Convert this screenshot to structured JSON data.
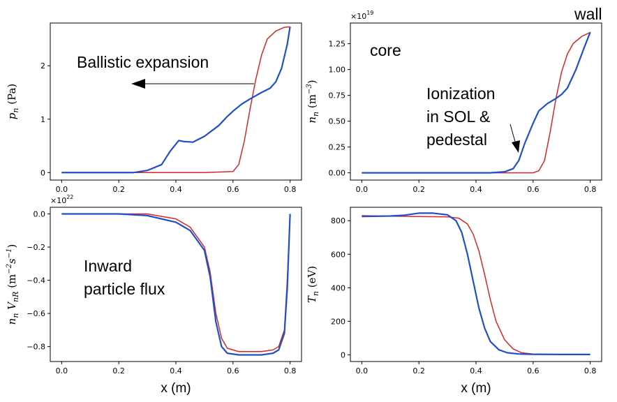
{
  "chart_data": [
    {
      "type": "line",
      "panel": "top-left",
      "ylabel": "p_n (Pa)",
      "xlabel": "",
      "xlim": [
        -0.04,
        0.84
      ],
      "ylim": [
        -0.14,
        2.8
      ],
      "xticks": [
        0.0,
        0.2,
        0.4,
        0.6,
        0.8
      ],
      "xtick_labels": [
        "0.0",
        "0.2",
        "0.4",
        "0.6",
        "0.8"
      ],
      "yticks": [
        0,
        1,
        2
      ],
      "ytick_labels": [
        "0",
        "1",
        "2"
      ],
      "offset_text": "",
      "series": [
        {
          "color": "#d62728",
          "x": [
            0,
            0.5,
            0.6,
            0.62,
            0.64,
            0.66,
            0.68,
            0.7,
            0.72,
            0.75,
            0.78,
            0.8
          ],
          "y": [
            0,
            0,
            0.02,
            0.15,
            0.6,
            1.2,
            1.75,
            2.2,
            2.5,
            2.65,
            2.72,
            2.73
          ]
        },
        {
          "color": "#1f4fc9",
          "x": [
            0,
            0.25,
            0.3,
            0.35,
            0.38,
            0.41,
            0.43,
            0.46,
            0.5,
            0.55,
            0.58,
            0.6,
            0.63,
            0.66,
            0.7,
            0.73,
            0.75,
            0.77,
            0.79,
            0.8
          ],
          "y": [
            0,
            0,
            0.04,
            0.15,
            0.4,
            0.6,
            0.58,
            0.57,
            0.68,
            0.88,
            1.05,
            1.15,
            1.28,
            1.38,
            1.5,
            1.58,
            1.7,
            1.95,
            2.4,
            2.73
          ]
        }
      ]
    },
    {
      "type": "line",
      "panel": "top-right",
      "ylabel": "n_n (m^-3)",
      "xlabel": "",
      "xlim": [
        -0.04,
        0.84
      ],
      "ylim": [
        -0.07,
        1.45
      ],
      "xticks": [
        0.0,
        0.2,
        0.4,
        0.6,
        0.8
      ],
      "xtick_labels": [
        "0.0",
        "0.2",
        "0.4",
        "0.6",
        "0.8"
      ],
      "yticks": [
        0.0,
        0.25,
        0.5,
        0.75,
        1.0,
        1.25
      ],
      "ytick_labels": [
        "0.00",
        "0.25",
        "0.50",
        "0.75",
        "1.00",
        "1.25"
      ],
      "offset_text": "×10^19",
      "series": [
        {
          "color": "#d62728",
          "x": [
            0,
            0.6,
            0.62,
            0.64,
            0.66,
            0.68,
            0.7,
            0.72,
            0.74,
            0.77,
            0.8
          ],
          "y": [
            0,
            0,
            0.02,
            0.12,
            0.4,
            0.72,
            0.98,
            1.15,
            1.25,
            1.32,
            1.36
          ]
        },
        {
          "color": "#1f4fc9",
          "x": [
            0,
            0.45,
            0.5,
            0.53,
            0.55,
            0.57,
            0.6,
            0.62,
            0.65,
            0.68,
            0.7,
            0.72,
            0.75,
            0.78,
            0.8
          ],
          "y": [
            0,
            0,
            0.01,
            0.04,
            0.12,
            0.28,
            0.48,
            0.6,
            0.67,
            0.72,
            0.76,
            0.82,
            1.0,
            1.22,
            1.36
          ]
        }
      ]
    },
    {
      "type": "line",
      "panel": "bottom-left",
      "ylabel": "n_n V_nR (m^-2 s^-1)",
      "xlabel": "x (m)",
      "xlim": [
        -0.04,
        0.84
      ],
      "ylim": [
        -0.89,
        0.04
      ],
      "xticks": [
        0.0,
        0.2,
        0.4,
        0.6,
        0.8
      ],
      "xtick_labels": [
        "0.0",
        "0.2",
        "0.4",
        "0.6",
        "0.8"
      ],
      "yticks": [
        0.0,
        -0.2,
        -0.4,
        -0.6,
        -0.8
      ],
      "ytick_labels": [
        "0.0",
        "−0.2",
        "−0.4",
        "−0.6",
        "−0.8"
      ],
      "offset_text": "×10^22",
      "series": [
        {
          "color": "#d62728",
          "x": [
            0,
            0.3,
            0.4,
            0.45,
            0.5,
            0.52,
            0.54,
            0.56,
            0.58,
            0.62,
            0.66,
            0.7,
            0.74,
            0.76,
            0.78,
            0.79,
            0.8
          ],
          "y": [
            0,
            0,
            -0.03,
            -0.08,
            -0.2,
            -0.35,
            -0.6,
            -0.75,
            -0.81,
            -0.83,
            -0.83,
            -0.83,
            -0.82,
            -0.8,
            -0.7,
            -0.4,
            0
          ]
        },
        {
          "color": "#1f4fc9",
          "x": [
            0,
            0.2,
            0.3,
            0.4,
            0.45,
            0.5,
            0.52,
            0.54,
            0.56,
            0.58,
            0.62,
            0.66,
            0.7,
            0.74,
            0.76,
            0.78,
            0.79,
            0.8
          ],
          "y": [
            0,
            0,
            -0.01,
            -0.05,
            -0.1,
            -0.22,
            -0.38,
            -0.65,
            -0.8,
            -0.84,
            -0.85,
            -0.85,
            -0.85,
            -0.84,
            -0.82,
            -0.72,
            -0.45,
            0
          ]
        }
      ]
    },
    {
      "type": "line",
      "panel": "bottom-right",
      "ylabel": "T_n (eV)",
      "xlabel": "x (m)",
      "xlim": [
        -0.04,
        0.84
      ],
      "ylim": [
        -40,
        880
      ],
      "xticks": [
        0.0,
        0.2,
        0.4,
        0.6,
        0.8
      ],
      "xtick_labels": [
        "0.0",
        "0.2",
        "0.4",
        "0.6",
        "0.8"
      ],
      "yticks": [
        0,
        200,
        400,
        600,
        800
      ],
      "ytick_labels": [
        "0",
        "200",
        "400",
        "600",
        "800"
      ],
      "offset_text": "",
      "series": [
        {
          "color": "#d62728",
          "x": [
            0,
            0.1,
            0.2,
            0.3,
            0.34,
            0.37,
            0.39,
            0.41,
            0.43,
            0.45,
            0.47,
            0.5,
            0.53,
            0.56,
            0.6,
            0.7,
            0.8
          ],
          "y": [
            830,
            827,
            825,
            823,
            815,
            780,
            720,
            620,
            480,
            330,
            200,
            90,
            35,
            12,
            5,
            2,
            2
          ]
        },
        {
          "color": "#1f4fc9",
          "x": [
            0,
            0.1,
            0.15,
            0.2,
            0.25,
            0.3,
            0.33,
            0.35,
            0.37,
            0.39,
            0.41,
            0.43,
            0.45,
            0.48,
            0.51,
            0.55,
            0.6,
            0.7,
            0.8
          ],
          "y": [
            825,
            828,
            833,
            845,
            845,
            835,
            800,
            730,
            600,
            440,
            280,
            160,
            80,
            30,
            12,
            5,
            3,
            2,
            2
          ]
        }
      ]
    }
  ],
  "annotations": {
    "ballistic": "Ballistic expansion",
    "core": "core",
    "wall": "wall",
    "ionization_line1": "Ionization",
    "ionization_line2": "in SOL &",
    "ionization_line3": "pedestal",
    "inward_line1": "Inward",
    "inward_line2": "particle flux"
  },
  "colors": {
    "red_series": "#d62728",
    "blue_series": "#1f4fc9",
    "axes": "#000000"
  }
}
